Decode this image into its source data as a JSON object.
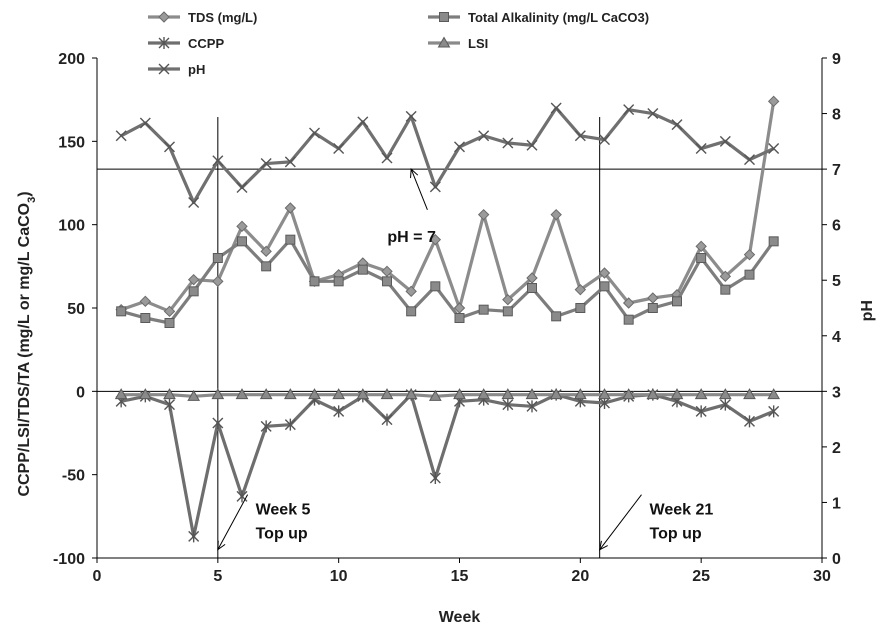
{
  "chart_data": {
    "type": "line",
    "xlabel": "Week",
    "ylabel": "CCPP/LSI/TDS/TA (mg/L or mg/L CaCO",
    "ylabel_sub": "3",
    "ylabel_tail": ")",
    "y2label": "pH",
    "xlim": [
      0,
      30
    ],
    "ylim": [
      -100,
      200
    ],
    "y2lim": [
      0,
      9
    ],
    "xticks": [
      "0",
      "5",
      "10",
      "15",
      "20",
      "25",
      "30"
    ],
    "yticks": [
      "-100",
      "-50",
      "0",
      "50",
      "100",
      "150",
      "200"
    ],
    "y2ticks": [
      "0",
      "1",
      "2",
      "3",
      "4",
      "5",
      "6",
      "7",
      "8",
      "9"
    ],
    "grid": false,
    "legend_position": "top",
    "x": [
      1,
      2,
      3,
      4,
      5,
      6,
      7,
      8,
      9,
      10,
      11,
      12,
      13,
      14,
      15,
      16,
      17,
      18,
      19,
      20,
      21,
      22,
      23,
      24,
      25,
      26,
      27,
      28
    ],
    "series": [
      {
        "name": "TDS (mg/L)",
        "axis": "left",
        "marker": "diamond",
        "color": "#8c8c8c",
        "values": [
          49,
          54,
          48,
          67,
          66,
          99,
          84,
          110,
          66,
          70,
          77,
          72,
          60,
          91,
          50,
          106,
          55,
          68,
          106,
          61,
          71,
          53,
          56,
          58,
          87,
          69,
          82,
          174
        ]
      },
      {
        "name": "Total Alkalinity (mg/L CaCO3)",
        "axis": "left",
        "marker": "square",
        "color": "#7d7d7d",
        "values": [
          48,
          44,
          41,
          60,
          80,
          90,
          75,
          91,
          66,
          66,
          73,
          66,
          48,
          63,
          44,
          49,
          48,
          62,
          45,
          50,
          63,
          43,
          50,
          54,
          80,
          61,
          70,
          90
        ]
      },
      {
        "name": "CCPP",
        "axis": "left",
        "marker": "asterisk",
        "color": "#6e6e6e",
        "values": [
          -6,
          -3,
          -8,
          -87,
          -19,
          -63,
          -21,
          -20,
          -5,
          -12,
          -3,
          -17,
          -2,
          -52,
          -6,
          -5,
          -8,
          -9,
          -2,
          -6,
          -7,
          -3,
          -2,
          -6,
          -12,
          -8,
          -18,
          -12
        ]
      },
      {
        "name": "LSI",
        "axis": "left",
        "marker": "triangle",
        "color": "#8a8a8a",
        "values": [
          -2,
          -2,
          -2,
          -3,
          -2,
          -2,
          -2,
          -2,
          -2,
          -2,
          -2,
          -2,
          -2,
          -3,
          -2,
          -2,
          -2,
          -2,
          -2,
          -2,
          -2,
          -2,
          -2,
          -2,
          -2,
          -2,
          -2,
          -2
        ]
      },
      {
        "name": "pH",
        "axis": "right",
        "marker": "x",
        "color": "#707070",
        "values": [
          7.6,
          7.83,
          7.4,
          6.4,
          7.15,
          6.67,
          7.1,
          7.13,
          7.65,
          7.37,
          7.85,
          7.2,
          7.95,
          6.68,
          7.4,
          7.6,
          7.47,
          7.43,
          8.1,
          7.6,
          7.53,
          8.07,
          8.0,
          7.8,
          7.37,
          7.5,
          7.17,
          7.37
        ]
      }
    ],
    "reference_lines": [
      {
        "type": "vertical",
        "x": 5
      },
      {
        "type": "vertical",
        "x": 20.8
      },
      {
        "type": "horizontal",
        "axis": "right",
        "y": 7
      },
      {
        "type": "horizontal",
        "axis": "left",
        "y": 0
      }
    ],
    "annotations": [
      {
        "text": "pH = 7",
        "x": 14.5,
        "y2": 5.8,
        "arrow_to": {
          "x": 13,
          "y2": 7
        }
      },
      {
        "text": "Week 5",
        "line2": "Top up",
        "x": 8.3,
        "y": -80,
        "arrow_to": {
          "x": 5,
          "y": -95
        }
      },
      {
        "text": "Week 21",
        "line2": "Top up",
        "x": 24.6,
        "y": -80,
        "arrow_to": {
          "x": 20.8,
          "y": -95
        }
      }
    ]
  }
}
